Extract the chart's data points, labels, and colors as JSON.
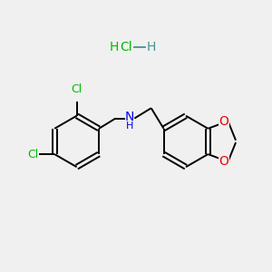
{
  "background_color": "#f0f0f0",
  "colors": {
    "cl": "#00bb00",
    "n": "#0000ee",
    "o": "#ee0000",
    "bond": "#000000",
    "h_teal": "#4a9090"
  },
  "hcl_label": "Cl",
  "h_label": "H",
  "nh_label": "N",
  "h_sub": "H",
  "cl1_label": "Cl",
  "cl2_label": "Cl",
  "o1_label": "O",
  "o2_label": "O"
}
